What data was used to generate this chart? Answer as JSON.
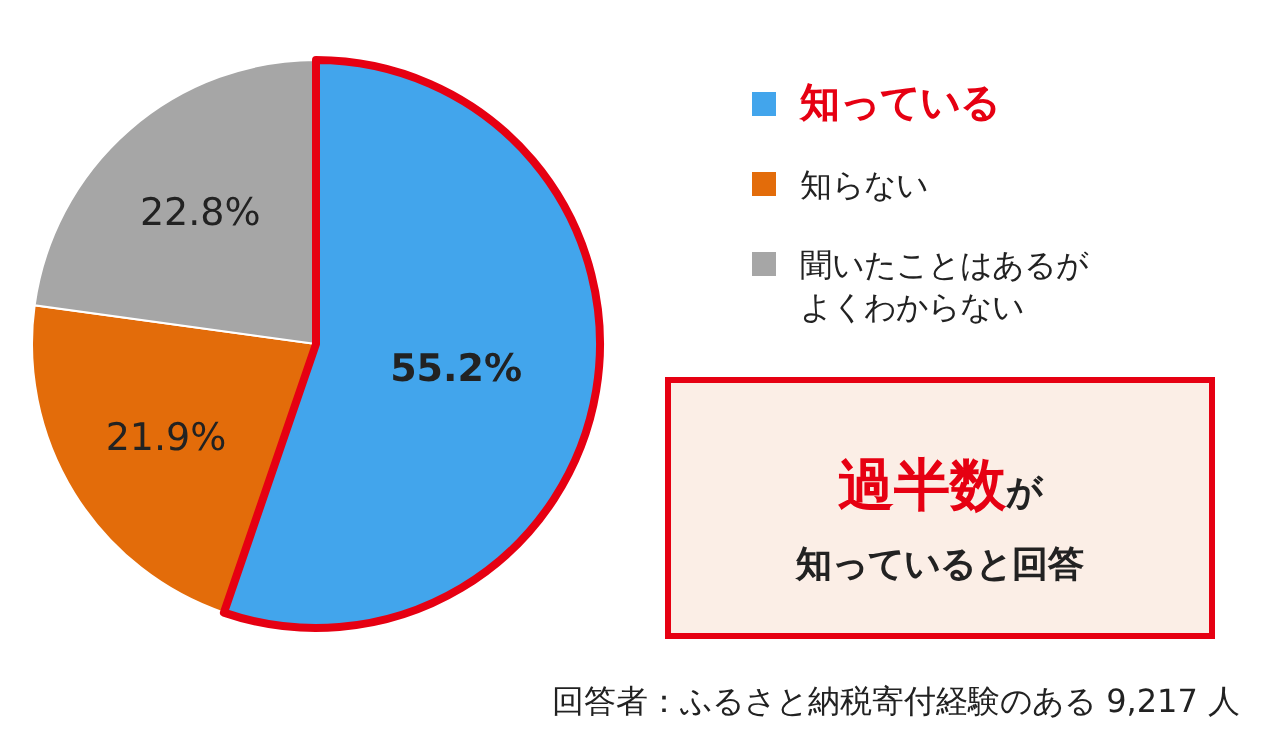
{
  "chart_data": {
    "type": "pie",
    "categories": [
      "知っている",
      "知らない",
      "聞いたことはあるがよくわからない"
    ],
    "values": [
      55.2,
      21.9,
      22.8
    ],
    "colors": [
      "#42a5ec",
      "#e36c0a",
      "#a6a6a6"
    ],
    "value_labels": [
      "55.2%",
      "21.9%",
      "22.8%"
    ],
    "legend": "right",
    "annotations": [
      "**過半数**が",
      "知っていると回答",
      "回答者：ふるさと納税寄付経験のある 9,217 人"
    ]
  }
}
